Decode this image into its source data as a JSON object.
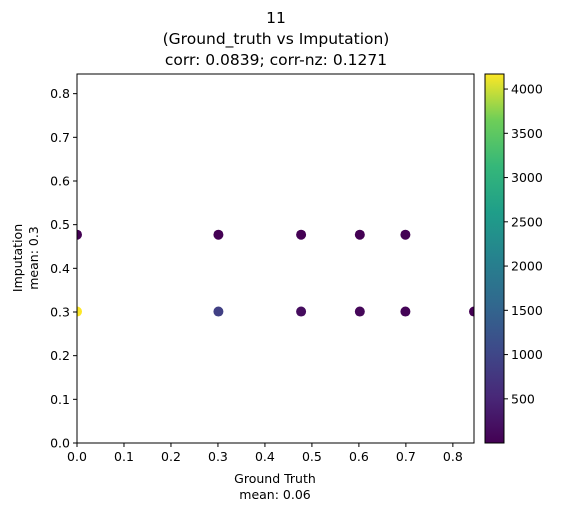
{
  "chart_data": {
    "type": "scatter",
    "title": [
      "11",
      "(Ground_truth vs Imputation)",
      "corr: 0.0839; corr-nz: 0.1271"
    ],
    "xlabel": [
      "Ground Truth",
      "mean: 0.06"
    ],
    "ylabel": [
      "Imputation",
      "mean: 0.3"
    ],
    "xlim": [
      0,
      0.845
    ],
    "ylim": [
      0,
      0.845
    ],
    "xticks": [
      "0.0",
      "0.1",
      "0.2",
      "0.3",
      "0.4",
      "0.5",
      "0.6",
      "0.7",
      "0.8"
    ],
    "yticks": [
      "0.0",
      "0.1",
      "0.2",
      "0.3",
      "0.4",
      "0.5",
      "0.6",
      "0.7",
      "0.8"
    ],
    "grid": false,
    "colormap": "viridis",
    "colorbar": {
      "min": 1,
      "max": 4170,
      "ticks": [
        "500",
        "1000",
        "1500",
        "2000",
        "2500",
        "3000",
        "3500",
        "4000"
      ]
    },
    "points": [
      {
        "x": 0.0,
        "y": 0.301,
        "count": 4170
      },
      {
        "x": 0.0,
        "y": 0.477,
        "count": 5
      },
      {
        "x": 0.301,
        "y": 0.301,
        "count": 900
      },
      {
        "x": 0.301,
        "y": 0.477,
        "count": 3
      },
      {
        "x": 0.477,
        "y": 0.301,
        "count": 150
      },
      {
        "x": 0.477,
        "y": 0.477,
        "count": 2
      },
      {
        "x": 0.602,
        "y": 0.301,
        "count": 80
      },
      {
        "x": 0.602,
        "y": 0.477,
        "count": 2
      },
      {
        "x": 0.699,
        "y": 0.301,
        "count": 40
      },
      {
        "x": 0.699,
        "y": 0.477,
        "count": 1
      },
      {
        "x": 0.845,
        "y": 0.301,
        "count": 2
      }
    ]
  }
}
